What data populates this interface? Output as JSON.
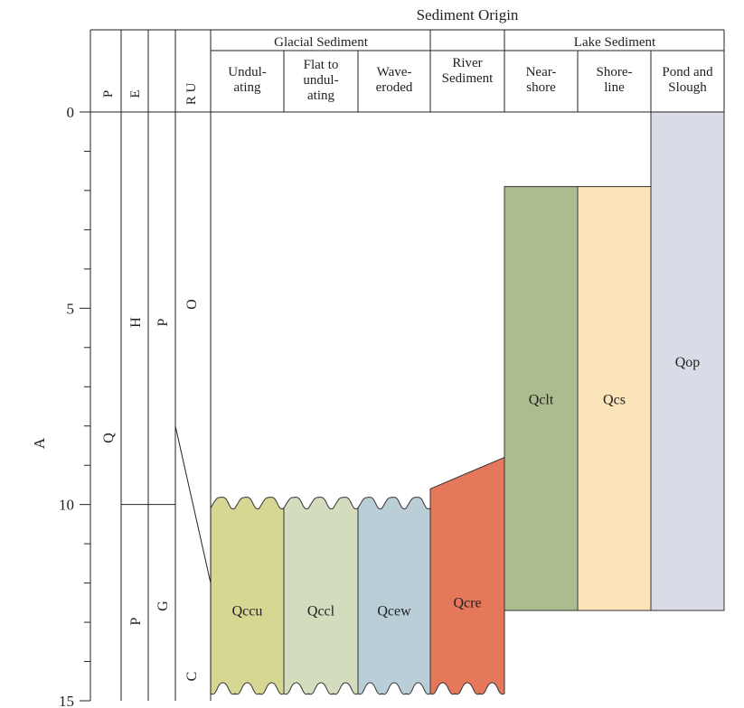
{
  "header": {
    "top_title": "Sediment Origin",
    "glacial_group": "Glacial Sediment",
    "lake_group": "Lake Sediment",
    "columns": [
      {
        "id": "undulating",
        "lines": [
          "Undul-",
          "ating"
        ]
      },
      {
        "id": "flat-to-undulating",
        "lines": [
          "Flat to",
          "undul-",
          "ating"
        ]
      },
      {
        "id": "wave-eroded",
        "lines": [
          "Wave-",
          "eroded"
        ]
      },
      {
        "id": "river-sediment",
        "lines": [
          "River",
          "Sediment"
        ]
      },
      {
        "id": "near-shore",
        "lines": [
          "Near-",
          "shore"
        ]
      },
      {
        "id": "shore-line",
        "lines": [
          "Shore-",
          "line"
        ]
      },
      {
        "id": "pond-and-slough",
        "lines": [
          "Pond and",
          "Slough"
        ]
      }
    ]
  },
  "time_columns": {
    "period_header": "P",
    "epoch_header": "E",
    "age_header": "R U",
    "period_label": "Q",
    "epoch_upper": "H",
    "epoch_lower": "P",
    "age_upper": "P",
    "age_lower": "G",
    "unit_upper": "O",
    "unit_lower": "C"
  },
  "axis": {
    "label": "A",
    "ticks": [
      {
        "value": 0,
        "label": "0"
      },
      {
        "value": 5,
        "label": "5"
      },
      {
        "value": 10,
        "label": "10"
      },
      {
        "value": 15,
        "label": "15"
      }
    ],
    "minor_ticks": [
      1,
      2,
      3,
      4,
      6,
      7,
      8,
      9,
      11,
      12,
      13,
      14
    ],
    "range": [
      0,
      15
    ],
    "epoch_boundary": 10,
    "unit_boundary_start": 8,
    "unit_boundary_end": 12
  },
  "units": [
    {
      "label": "Qccu",
      "column": 0,
      "top": 10,
      "bottom": 15,
      "top_shape": "wavy",
      "bottom_shape": "wavy",
      "color": "#d5d793"
    },
    {
      "label": "Qccl",
      "column": 1,
      "top": 10,
      "bottom": 15,
      "top_shape": "wavy",
      "bottom_shape": "wavy",
      "color": "#d4dcbe"
    },
    {
      "label": "Qcew",
      "column": 2,
      "top": 10,
      "bottom": 15,
      "top_shape": "wavy",
      "bottom_shape": "wavy",
      "color": "#b9ced6"
    },
    {
      "label": "Qcre",
      "column": 3,
      "top": 9.6,
      "top_right": 8.8,
      "bottom": 15,
      "top_shape": "slope",
      "bottom_shape": "wavy",
      "color": "#e5775a"
    },
    {
      "label": "Qclt",
      "column": 4,
      "top": 1.9,
      "bottom": 12.7,
      "top_shape": "flat",
      "bottom_shape": "flat",
      "color": "#adbc8f"
    },
    {
      "label": "Qcs",
      "column": 5,
      "top": 1.9,
      "bottom": 12.7,
      "top_shape": "flat",
      "bottom_shape": "flat",
      "color": "#fbe4b9"
    },
    {
      "label": "Qop",
      "column": 6,
      "top": 0,
      "bottom": 12.7,
      "top_shape": "flat",
      "bottom_shape": "flat",
      "color": "#d9dce6"
    }
  ]
}
